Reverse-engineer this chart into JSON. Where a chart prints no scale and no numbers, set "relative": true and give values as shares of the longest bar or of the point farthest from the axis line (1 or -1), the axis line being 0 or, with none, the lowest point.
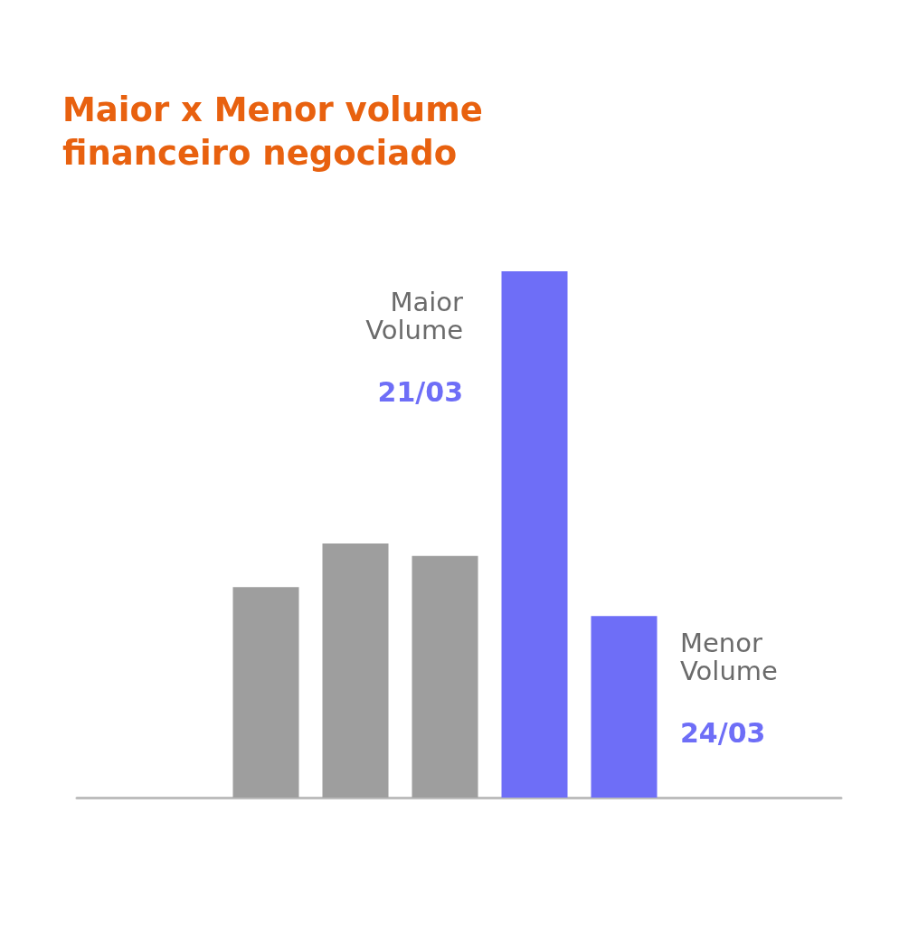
{
  "chart_data": {
    "type": "bar",
    "title": "Maior x Menor volume financeiro negociado",
    "relative": true,
    "categories": [
      null,
      null,
      null,
      null,
      null
    ],
    "values": [
      0.4,
      0.483,
      0.459,
      1,
      0.345
    ],
    "colors": [
      "#9e9e9e",
      "#9e9e9e",
      "#9e9e9e",
      "#6e6ef7",
      "#6e6ef7"
    ],
    "annotations": [
      "Maior Volume",
      "21/03",
      "Menor Volume",
      "24/03"
    ]
  }
}
